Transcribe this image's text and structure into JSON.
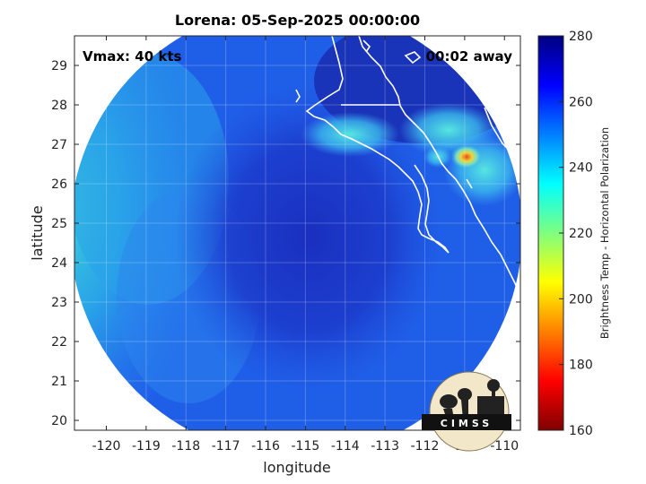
{
  "title": "Lorena: 05-Sep-2025 00:00:00",
  "vmax_label": "Vmax: 40 kts",
  "time_away_label": "00:02 away",
  "logo_text": "CIMSS",
  "chart_data": {
    "type": "heatmap",
    "xlabel": "longitude",
    "ylabel": "latitude",
    "xlim": [
      -120.8,
      -109.6
    ],
    "ylim": [
      19.75,
      29.75
    ],
    "xticks": [
      -120,
      -119,
      -118,
      -117,
      -116,
      -115,
      -114,
      -113,
      -112,
      -111,
      -110
    ],
    "yticks": [
      20,
      21,
      22,
      23,
      24,
      25,
      26,
      27,
      28,
      29
    ],
    "grid": true,
    "colorbar": {
      "label": "Brightness Temp - Horizontal Polarization",
      "min": 160,
      "max": 280,
      "ticks": [
        160,
        180,
        200,
        220,
        240,
        260,
        280
      ],
      "colormap": "jet"
    },
    "storm_center": {
      "lon": -115.3,
      "lat": 24.5
    },
    "colors": {
      "warm_core": "#1a2fbe",
      "ocean": "#1f5fe8",
      "cold_cells": "#e04a16"
    }
  }
}
